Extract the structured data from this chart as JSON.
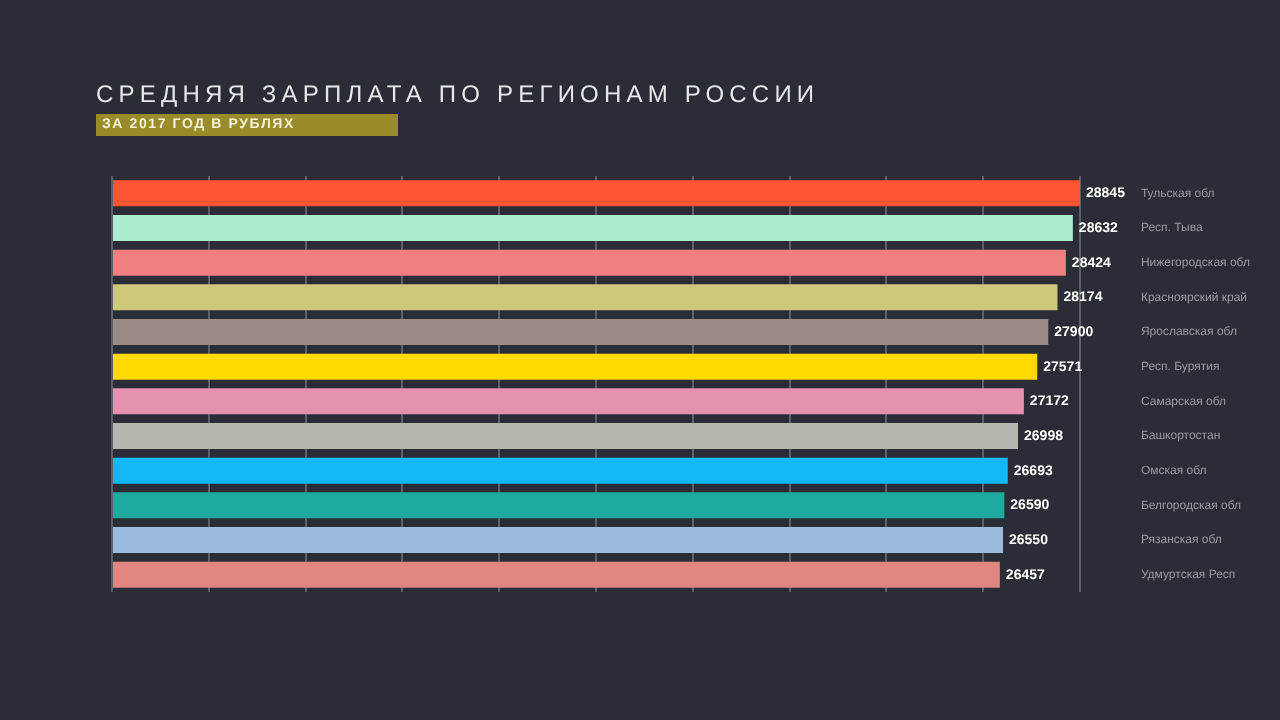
{
  "chart_data": {
    "type": "bar",
    "orientation": "horizontal",
    "title": "СРЕДНЯЯ ЗАРПЛАТА ПО РЕГИОНАМ РОССИИ",
    "subtitle": "ЗА 2017 ГОД В РУБЛЯХ",
    "categories": [
      "Тульская обл",
      "Респ. Тыва",
      "Нижегородская обл",
      "Красноярский край",
      "Ярославская обл",
      "Респ. Бурятия",
      "Самарская обл",
      "Башкортостан",
      "Омская обл",
      "Белгородская обл",
      "Рязанская обл",
      "Удмуртская Респ"
    ],
    "values": [
      28845,
      28632,
      28424,
      28174,
      27900,
      27571,
      27172,
      26998,
      26693,
      26590,
      26550,
      26457
    ],
    "colors": [
      "#ff5533",
      "#aeeccf",
      "#f07f7f",
      "#cfc87a",
      "#9a8b86",
      "#ffd900",
      "#e591b2",
      "#b3b8ae",
      "#13b8f5",
      "#1eaaa0",
      "#9bbbe0",
      "#e08580"
    ],
    "xlim": [
      0,
      28845
    ],
    "xticks": [
      {
        "value": 0,
        "label": null
      },
      {
        "value": 2884.5,
        "label": null
      },
      {
        "value": 5769,
        "label": null
      },
      {
        "value": 8653.5,
        "label": null
      },
      {
        "value": 11538,
        "label": null
      },
      {
        "value": 14422.5,
        "label": null
      },
      {
        "value": 17307,
        "label": null
      },
      {
        "value": 20191.5,
        "label": null
      },
      {
        "value": 23076,
        "label": null
      },
      {
        "value": 25960.5,
        "label": null
      },
      {
        "value": 28845,
        "label": null
      }
    ],
    "grid": "x",
    "data_labels": true,
    "legend": false
  }
}
